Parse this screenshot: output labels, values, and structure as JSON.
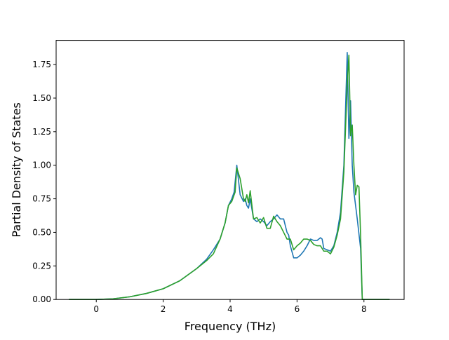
{
  "chart_data": {
    "type": "line",
    "xlabel": "Frequency (THz)",
    "ylabel": "Partial Density of States",
    "xlim": [
      -1.2,
      9.2
    ],
    "ylim": [
      0.0,
      1.93
    ],
    "xticks": [
      0,
      2,
      4,
      6,
      8
    ],
    "xtick_labels": [
      "0",
      "2",
      "4",
      "6",
      "8"
    ],
    "yticks": [
      0.0,
      0.25,
      0.5,
      0.75,
      1.0,
      1.25,
      1.5,
      1.75
    ],
    "ytick_labels": [
      "0.00",
      "0.25",
      "0.50",
      "0.75",
      "1.00",
      "1.25",
      "1.50",
      "1.75"
    ],
    "grid": false,
    "series": [
      {
        "color": "#1f77b4",
        "x": [
          -0.8,
          0,
          0.5,
          1,
          1.5,
          2,
          2.5,
          3,
          3.3,
          3.5,
          3.7,
          3.85,
          3.95,
          4.05,
          4.12,
          4.2,
          4.3,
          4.4,
          4.45,
          4.5,
          4.55,
          4.6,
          4.7,
          4.8,
          4.9,
          5.0,
          5.1,
          5.2,
          5.3,
          5.4,
          5.5,
          5.6,
          5.7,
          5.75,
          5.8,
          5.9,
          6.0,
          6.1,
          6.2,
          6.3,
          6.4,
          6.5,
          6.6,
          6.7,
          6.75,
          6.8,
          7.0,
          7.1,
          7.2,
          7.3,
          7.4,
          7.5,
          7.55,
          7.6,
          7.65,
          7.7,
          7.75,
          7.8,
          7.9,
          7.95,
          8.0,
          8.1,
          8.75
        ],
        "y": [
          0,
          0,
          0.005,
          0.02,
          0.045,
          0.08,
          0.14,
          0.23,
          0.3,
          0.37,
          0.45,
          0.57,
          0.7,
          0.75,
          0.8,
          1.0,
          0.78,
          0.73,
          0.75,
          0.7,
          0.68,
          0.75,
          0.6,
          0.58,
          0.6,
          0.58,
          0.55,
          0.58,
          0.6,
          0.63,
          0.6,
          0.6,
          0.5,
          0.48,
          0.4,
          0.31,
          0.31,
          0.33,
          0.36,
          0.4,
          0.45,
          0.44,
          0.44,
          0.46,
          0.45,
          0.38,
          0.36,
          0.4,
          0.5,
          0.65,
          1.0,
          1.84,
          1.2,
          1.48,
          1.0,
          0.8,
          0.7,
          0.6,
          0.38,
          0.0,
          0.0,
          0.0,
          0.0
        ]
      },
      {
        "color": "#2ca02c",
        "x": [
          -0.8,
          0,
          0.5,
          1,
          1.5,
          2,
          2.5,
          3,
          3.3,
          3.5,
          3.7,
          3.85,
          3.95,
          4.05,
          4.15,
          4.2,
          4.3,
          4.4,
          4.45,
          4.5,
          4.55,
          4.6,
          4.7,
          4.8,
          4.9,
          5.0,
          5.1,
          5.2,
          5.3,
          5.4,
          5.5,
          5.6,
          5.7,
          5.8,
          5.9,
          6.0,
          6.1,
          6.2,
          6.3,
          6.4,
          6.5,
          6.6,
          6.7,
          6.8,
          6.9,
          7.0,
          7.1,
          7.2,
          7.3,
          7.4,
          7.5,
          7.55,
          7.6,
          7.65,
          7.7,
          7.75,
          7.8,
          7.85,
          7.9,
          7.95,
          8.0,
          8.1,
          8.75
        ],
        "y": [
          0,
          0,
          0.005,
          0.02,
          0.045,
          0.08,
          0.14,
          0.23,
          0.29,
          0.34,
          0.45,
          0.57,
          0.7,
          0.73,
          0.8,
          0.98,
          0.9,
          0.75,
          0.73,
          0.78,
          0.72,
          0.81,
          0.6,
          0.61,
          0.57,
          0.61,
          0.53,
          0.53,
          0.62,
          0.58,
          0.55,
          0.5,
          0.45,
          0.45,
          0.37,
          0.4,
          0.42,
          0.45,
          0.45,
          0.44,
          0.41,
          0.4,
          0.4,
          0.36,
          0.36,
          0.34,
          0.39,
          0.48,
          0.6,
          0.95,
          1.6,
          1.82,
          1.22,
          1.3,
          1.0,
          0.78,
          0.85,
          0.84,
          0.48,
          0.0,
          0.0,
          0.0,
          0.0
        ]
      }
    ]
  }
}
